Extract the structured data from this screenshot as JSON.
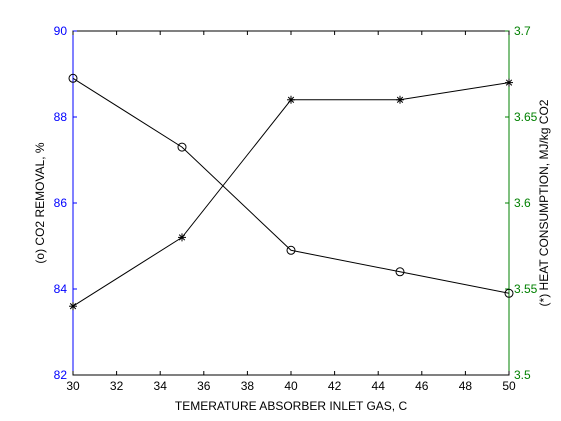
{
  "chart_data": {
    "type": "line",
    "xlabel": "TEMERATURE ABSORBER INLET GAS, C",
    "ylabel_left": "(o) CO2 REMOVAL, %",
    "ylabel_right": "(*) HEAT CONSUMPTION, MJ/kg CO2",
    "xlim": [
      30,
      50
    ],
    "ylim_left": [
      82,
      90
    ],
    "ylim_right": [
      3.5,
      3.7
    ],
    "x_ticks": [
      "30",
      "32",
      "34",
      "36",
      "38",
      "40",
      "42",
      "44",
      "46",
      "48",
      "50"
    ],
    "y_left_ticks": [
      "82",
      "84",
      "86",
      "88",
      "90"
    ],
    "y_right_ticks": [
      "3.5",
      "3.55",
      "3.6",
      "3.65",
      "3.7"
    ],
    "grid": false,
    "colors": {
      "left_axis": "#0000ff",
      "right_axis": "#008000",
      "lines": "#000000",
      "x_axis": "#000000"
    },
    "series": [
      {
        "axis": "left",
        "marker": "circle",
        "x": [
          30,
          35,
          40,
          45,
          50
        ],
        "y": [
          88.9,
          87.3,
          84.9,
          84.4,
          83.9
        ]
      },
      {
        "axis": "right",
        "marker": "asterisk",
        "x": [
          30,
          35,
          40,
          45,
          50
        ],
        "y": [
          3.54,
          3.58,
          3.66,
          3.66,
          3.67
        ]
      }
    ]
  }
}
